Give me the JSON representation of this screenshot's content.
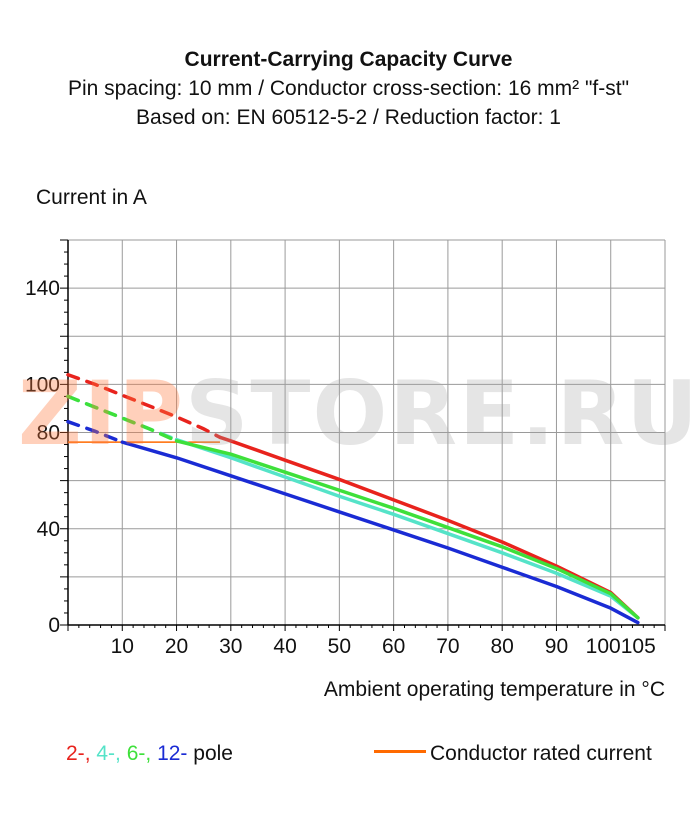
{
  "title": "Current-Carrying Capacity Curve",
  "subtitle_line1": "Pin spacing: 10 mm / Conductor cross-section: 16 mm² \"f-st\"",
  "subtitle_line2": "Based on: EN 60512-5-2 / Reduction factor: 1",
  "watermark": {
    "part1": "ZIP",
    "part2": "STORE.RU"
  },
  "chart_data": {
    "type": "line",
    "title": "Current-Carrying Capacity Curve",
    "xlabel": "Ambient operating temperature in °C",
    "ylabel": "Current in A",
    "xlim": [
      0,
      110
    ],
    "ylim": [
      0,
      160
    ],
    "x_ticks": [
      10,
      20,
      30,
      40,
      50,
      60,
      70,
      80,
      90,
      100,
      105
    ],
    "x_tick_labels": [
      "10",
      "20",
      "30",
      "40",
      "50",
      "60",
      "70",
      "80",
      "90",
      "100",
      "105"
    ],
    "y_ticks": [
      0,
      40,
      80,
      100,
      140
    ],
    "grid": true,
    "colors": {
      "grid": "#9a9a9a",
      "axis": "#000000",
      "pole2": "#e8231d",
      "pole4": "#55e3c8",
      "pole6": "#3ee03a",
      "pole12": "#1a2bd4",
      "rated": "#ff6a00"
    },
    "series": [
      {
        "name": "2-",
        "color": "#e8231d",
        "dashed": {
          "x": [
            0,
            5,
            10,
            15,
            20,
            25,
            28
          ],
          "y": [
            104,
            100,
            95.5,
            91,
            86.5,
            81.5,
            78
          ]
        },
        "solid": {
          "x": [
            28,
            30,
            40,
            50,
            60,
            70,
            80,
            90,
            100,
            105
          ],
          "y": [
            78,
            76.5,
            68.5,
            60.5,
            52,
            43.5,
            34.5,
            24.5,
            13.5,
            3
          ]
        }
      },
      {
        "name": "4-",
        "color": "#55e3c8",
        "dashed": {
          "x": [
            0,
            5,
            10,
            15,
            20
          ],
          "y": [
            95,
            90.5,
            86,
            81.5,
            77
          ]
        },
        "solid": {
          "x": [
            20,
            30,
            40,
            50,
            60,
            70,
            80,
            90,
            100,
            105
          ],
          "y": [
            77,
            69.5,
            61.5,
            53.5,
            46,
            38,
            30,
            21.5,
            12,
            3
          ]
        }
      },
      {
        "name": "6-",
        "color": "#3ee03a",
        "dashed": {
          "x": [
            0,
            5,
            10,
            15,
            20
          ],
          "y": [
            95,
            90.5,
            86,
            81.5,
            76.5
          ]
        },
        "solid": {
          "x": [
            20,
            30,
            40,
            50,
            60,
            70,
            80,
            90,
            100,
            105
          ],
          "y": [
            76.5,
            71,
            63.5,
            56,
            48.5,
            40.5,
            32.5,
            23.5,
            13,
            3
          ]
        }
      },
      {
        "name": "12-",
        "color": "#1a2bd4",
        "dashed": {
          "x": [
            0,
            5,
            10
          ],
          "y": [
            84.5,
            80.5,
            76
          ]
        },
        "solid": {
          "x": [
            10,
            20,
            30,
            40,
            50,
            60,
            70,
            80,
            90,
            100,
            105
          ],
          "y": [
            76,
            69.5,
            62,
            54.5,
            47,
            39.5,
            32,
            24,
            16,
            7,
            1
          ]
        }
      }
    ],
    "rated_current": {
      "name": "Conductor rated current",
      "value": 76,
      "x_range": [
        0,
        28
      ],
      "color": "#ff6a00"
    },
    "legend": {
      "poles": [
        {
          "text": "2-",
          "color": "#e8231d"
        },
        {
          "text": ", ",
          "color": "#e8231d"
        },
        {
          "text": "4-",
          "color": "#55e3c8"
        },
        {
          "text": ", ",
          "color": "#55e3c8"
        },
        {
          "text": "6-",
          "color": "#3ee03a"
        },
        {
          "text": ", ",
          "color": "#3ee03a"
        },
        {
          "text": "12-",
          "color": "#1a2bd4"
        },
        {
          "text": " pole",
          "color": "#111111"
        }
      ],
      "rated_label": "Conductor rated current"
    }
  }
}
